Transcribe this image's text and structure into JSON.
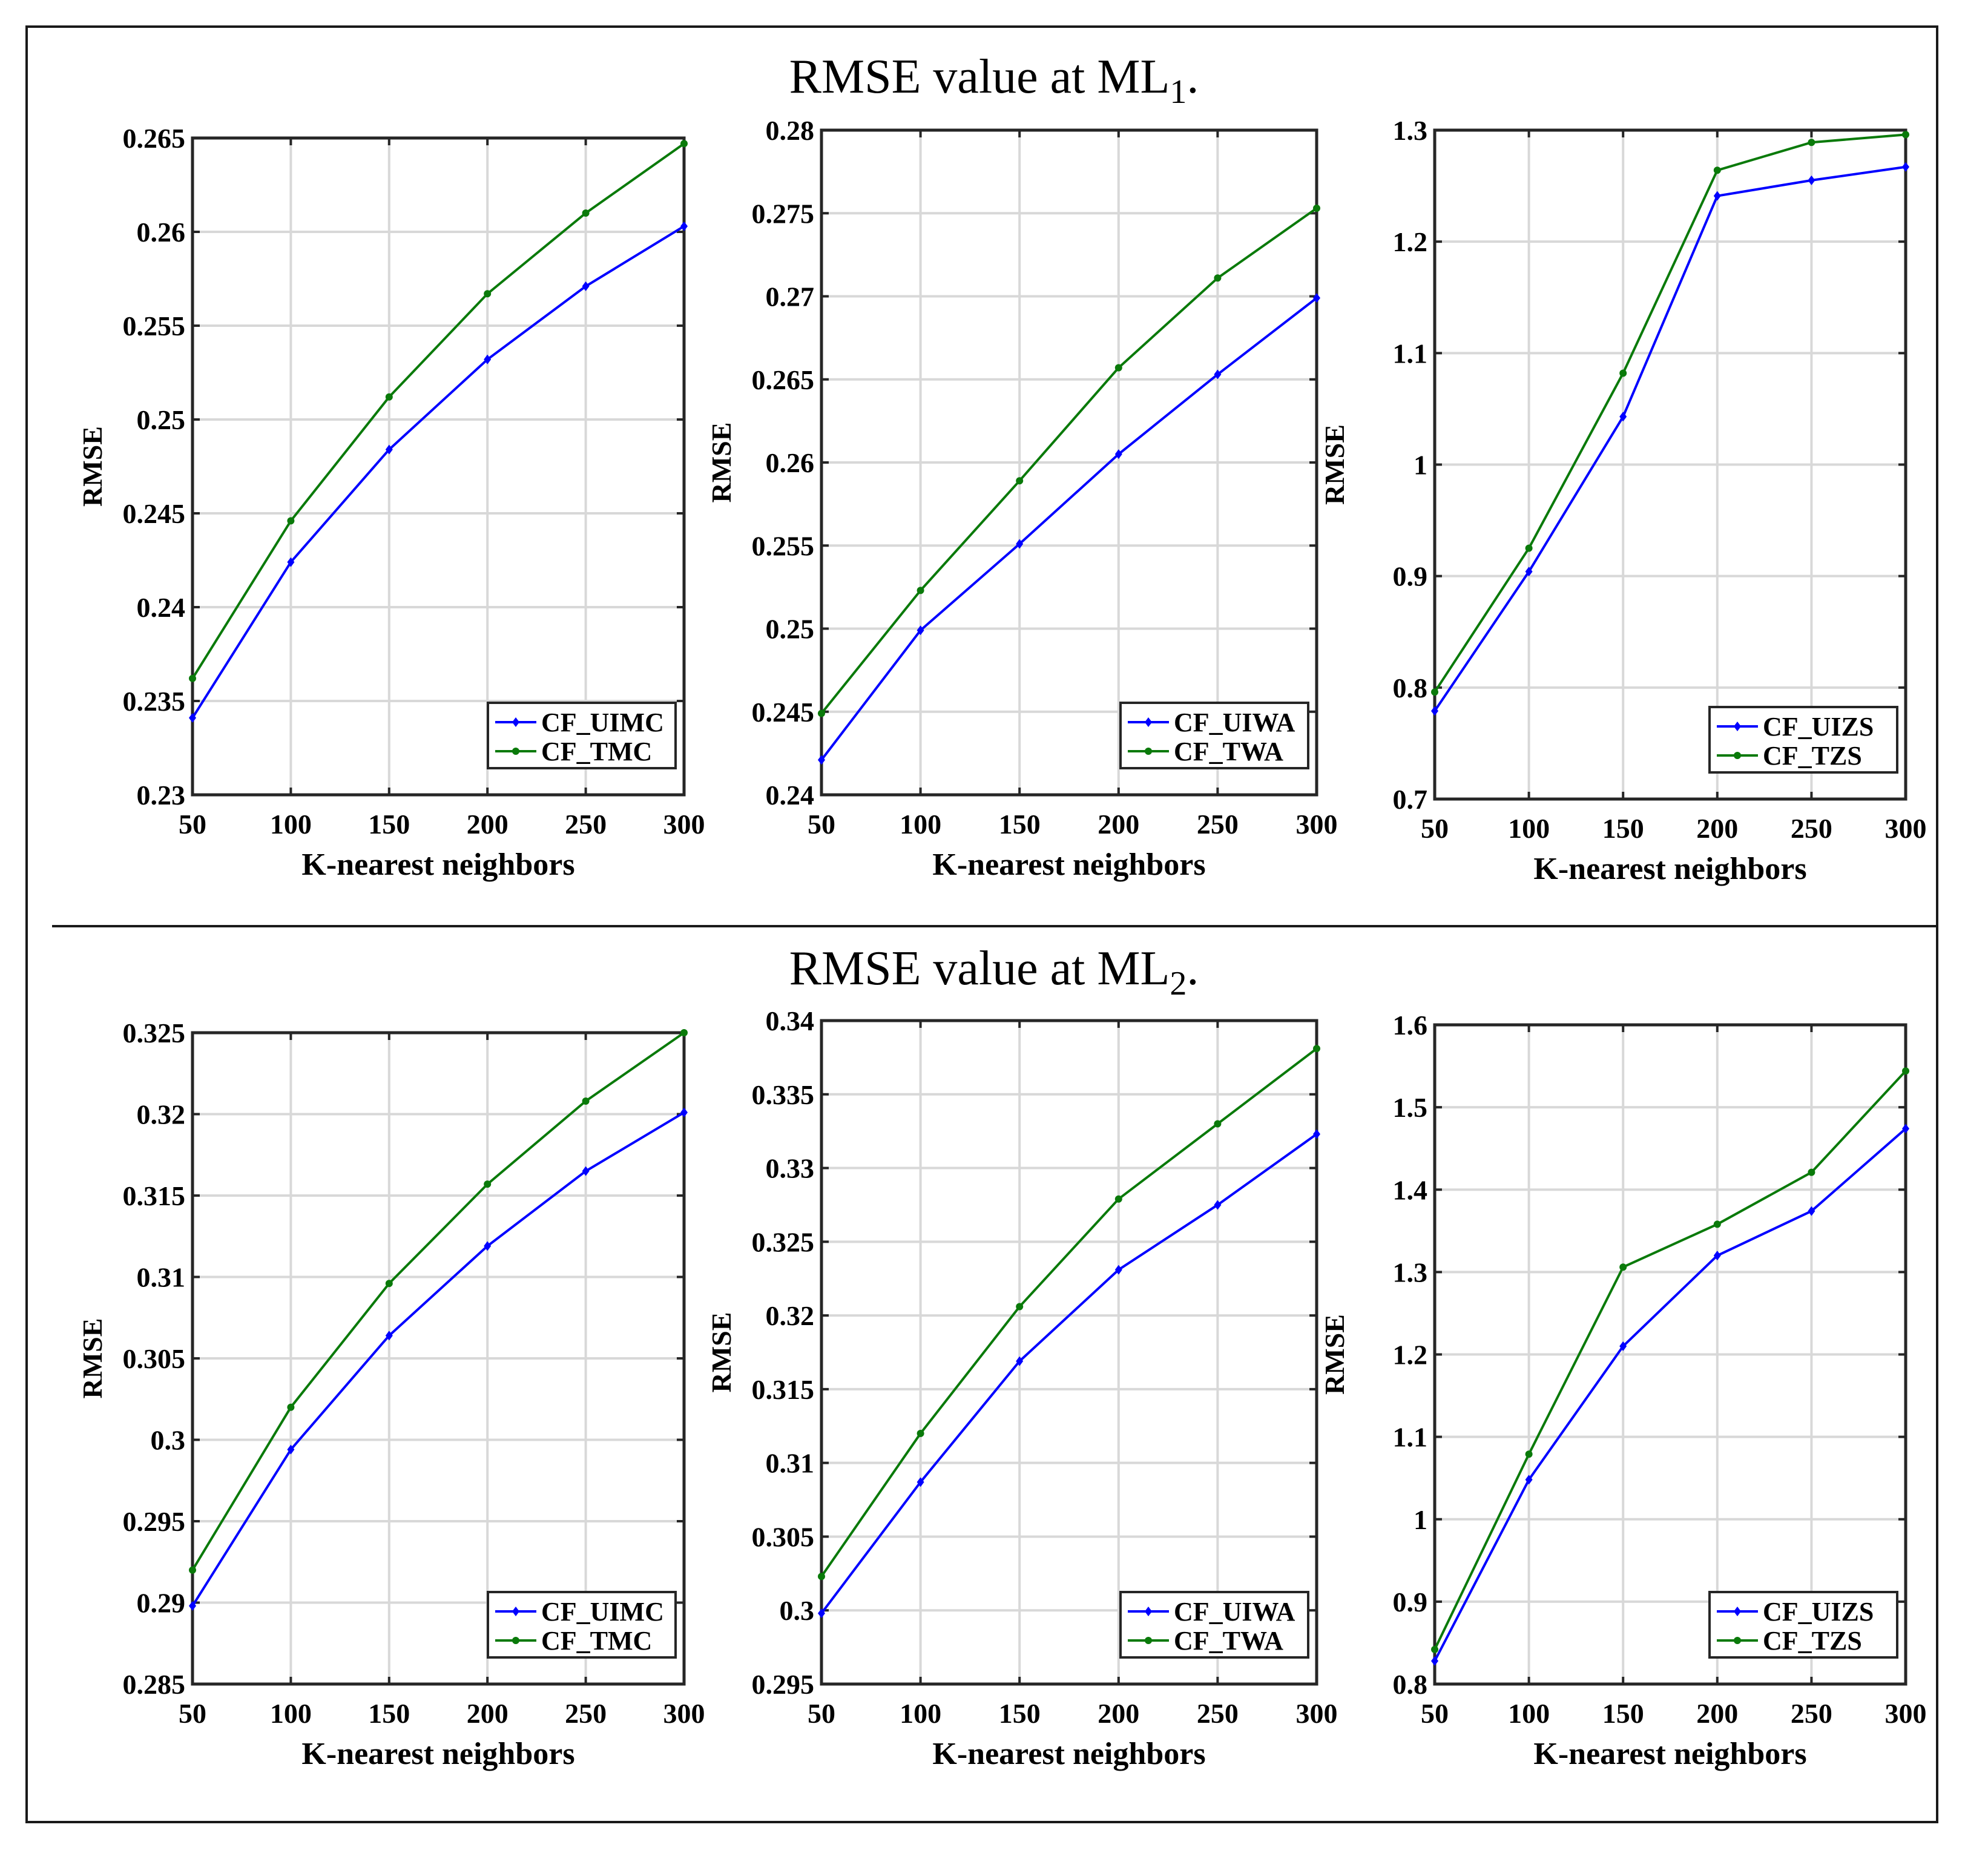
{
  "sections": [
    {
      "title_prefix": "RMSE value at ML",
      "subscript": "1",
      "title_suffix": "."
    },
    {
      "title_prefix": "RMSE value at ML",
      "subscript": "2",
      "title_suffix": "."
    }
  ],
  "colors": {
    "series1": "#0000ff",
    "series2": "#0a7a0a",
    "grid": "#d8d8d8",
    "axis": "#262626"
  },
  "chart_data": [
    {
      "type": "line",
      "section": 1,
      "xlabel": "K-nearest neighbors",
      "ylabel": "RMSE",
      "x": [
        50,
        100,
        150,
        200,
        250,
        300
      ],
      "xlim": [
        50,
        300
      ],
      "ylim": [
        0.23,
        0.265
      ],
      "yticks": [
        0.23,
        0.235,
        0.24,
        0.245,
        0.25,
        0.255,
        0.26,
        0.265
      ],
      "yticklabels": [
        "0.23",
        "0.235",
        "0.24",
        "0.245",
        "0.25",
        "0.255",
        "0.26",
        "0.265"
      ],
      "legend": "bottom-right",
      "series": [
        {
          "name": "CF_UIMC",
          "marker": "diamond",
          "values": [
            0.2341,
            0.2424,
            0.2484,
            0.2532,
            0.2571,
            0.2603
          ]
        },
        {
          "name": "CF_TMC",
          "marker": "dot",
          "values": [
            0.2362,
            0.2446,
            0.2512,
            0.2567,
            0.261,
            0.2647
          ]
        }
      ]
    },
    {
      "type": "line",
      "section": 1,
      "xlabel": "K-nearest neighbors",
      "ylabel": "RMSE",
      "x": [
        50,
        100,
        150,
        200,
        250,
        300
      ],
      "xlim": [
        50,
        300
      ],
      "ylim": [
        0.24,
        0.28
      ],
      "yticks": [
        0.24,
        0.245,
        0.25,
        0.255,
        0.26,
        0.265,
        0.27,
        0.275,
        0.28
      ],
      "yticklabels": [
        "0.24",
        "0.245",
        "0.25",
        "0.255",
        "0.26",
        "0.265",
        "0.27",
        "0.275",
        "0.28"
      ],
      "legend": "bottom-right",
      "series": [
        {
          "name": "CF_UIWA",
          "marker": "diamond",
          "values": [
            0.2421,
            0.2499,
            0.2551,
            0.2605,
            0.2653,
            0.2699
          ]
        },
        {
          "name": "CF_TWA",
          "marker": "dot",
          "values": [
            0.2449,
            0.2523,
            0.2589,
            0.2657,
            0.2711,
            0.2753
          ]
        }
      ]
    },
    {
      "type": "line",
      "section": 1,
      "xlabel": "K-nearest neighbors",
      "ylabel": "RMSE",
      "x": [
        50,
        100,
        150,
        200,
        250,
        300
      ],
      "xlim": [
        50,
        300
      ],
      "ylim": [
        0.7,
        1.3
      ],
      "yticks": [
        0.7,
        0.8,
        0.9,
        1.0,
        1.1,
        1.2,
        1.3
      ],
      "yticklabels": [
        "0.7",
        "0.8",
        "0.9",
        "1",
        "1.1",
        "1.2",
        "1.3"
      ],
      "legend": "bottom-right",
      "series": [
        {
          "name": "CF_UIZS",
          "marker": "diamond",
          "values": [
            0.779,
            0.904,
            1.043,
            1.241,
            1.255,
            1.267
          ]
        },
        {
          "name": "CF_TZS",
          "marker": "dot",
          "values": [
            0.796,
            0.925,
            1.082,
            1.264,
            1.289,
            1.296
          ]
        }
      ]
    },
    {
      "type": "line",
      "section": 2,
      "xlabel": "K-nearest neighbors",
      "ylabel": "RMSE",
      "x": [
        50,
        100,
        150,
        200,
        250,
        300
      ],
      "xlim": [
        50,
        300
      ],
      "ylim": [
        0.285,
        0.325
      ],
      "yticks": [
        0.285,
        0.29,
        0.295,
        0.3,
        0.305,
        0.31,
        0.315,
        0.32,
        0.325
      ],
      "yticklabels": [
        "0.285",
        "0.29",
        "0.295",
        "0.3",
        "0.305",
        "0.31",
        "0.315",
        "0.32",
        "0.325"
      ],
      "legend": "bottom-right",
      "series": [
        {
          "name": "CF_UIMC",
          "marker": "diamond",
          "values": [
            0.2898,
            0.2994,
            0.3064,
            0.3119,
            0.3165,
            0.3201
          ]
        },
        {
          "name": "CF_TMC",
          "marker": "dot",
          "values": [
            0.292,
            0.302,
            0.3096,
            0.3157,
            0.3208,
            0.325
          ]
        }
      ]
    },
    {
      "type": "line",
      "section": 2,
      "xlabel": "K-nearest neighbors",
      "ylabel": "RMSE",
      "x": [
        50,
        100,
        150,
        200,
        250,
        300
      ],
      "xlim": [
        50,
        300
      ],
      "ylim": [
        0.295,
        0.34
      ],
      "yticks": [
        0.295,
        0.3,
        0.305,
        0.31,
        0.315,
        0.32,
        0.325,
        0.33,
        0.335,
        0.34
      ],
      "yticklabels": [
        "0.295",
        "0.3",
        "0.305",
        "0.31",
        "0.315",
        "0.32",
        "0.325",
        "0.33",
        "0.335",
        "0.34"
      ],
      "legend": "bottom-right",
      "series": [
        {
          "name": "CF_UIWA",
          "marker": "diamond",
          "values": [
            0.2998,
            0.3087,
            0.3169,
            0.3231,
            0.3275,
            0.3323
          ]
        },
        {
          "name": "CF_TWA",
          "marker": "dot",
          "values": [
            0.3023,
            0.312,
            0.3206,
            0.3279,
            0.333,
            0.3381
          ]
        }
      ]
    },
    {
      "type": "line",
      "section": 2,
      "xlabel": "K-nearest neighbors",
      "ylabel": "RMSE",
      "x": [
        50,
        100,
        150,
        200,
        250,
        300
      ],
      "xlim": [
        50,
        300
      ],
      "ylim": [
        0.8,
        1.6
      ],
      "yticks": [
        0.8,
        0.9,
        1.0,
        1.1,
        1.2,
        1.3,
        1.4,
        1.5,
        1.6
      ],
      "yticklabels": [
        "0.8",
        "0.9",
        "1",
        "1.1",
        "1.2",
        "1.3",
        "1.4",
        "1.5",
        "1.6"
      ],
      "legend": "bottom-right",
      "series": [
        {
          "name": "CF_UIZS",
          "marker": "diamond",
          "values": [
            0.828,
            1.048,
            1.21,
            1.32,
            1.374,
            1.474
          ]
        },
        {
          "name": "CF_TZS",
          "marker": "dot",
          "values": [
            0.842,
            1.079,
            1.306,
            1.358,
            1.421,
            1.544
          ]
        }
      ]
    }
  ]
}
